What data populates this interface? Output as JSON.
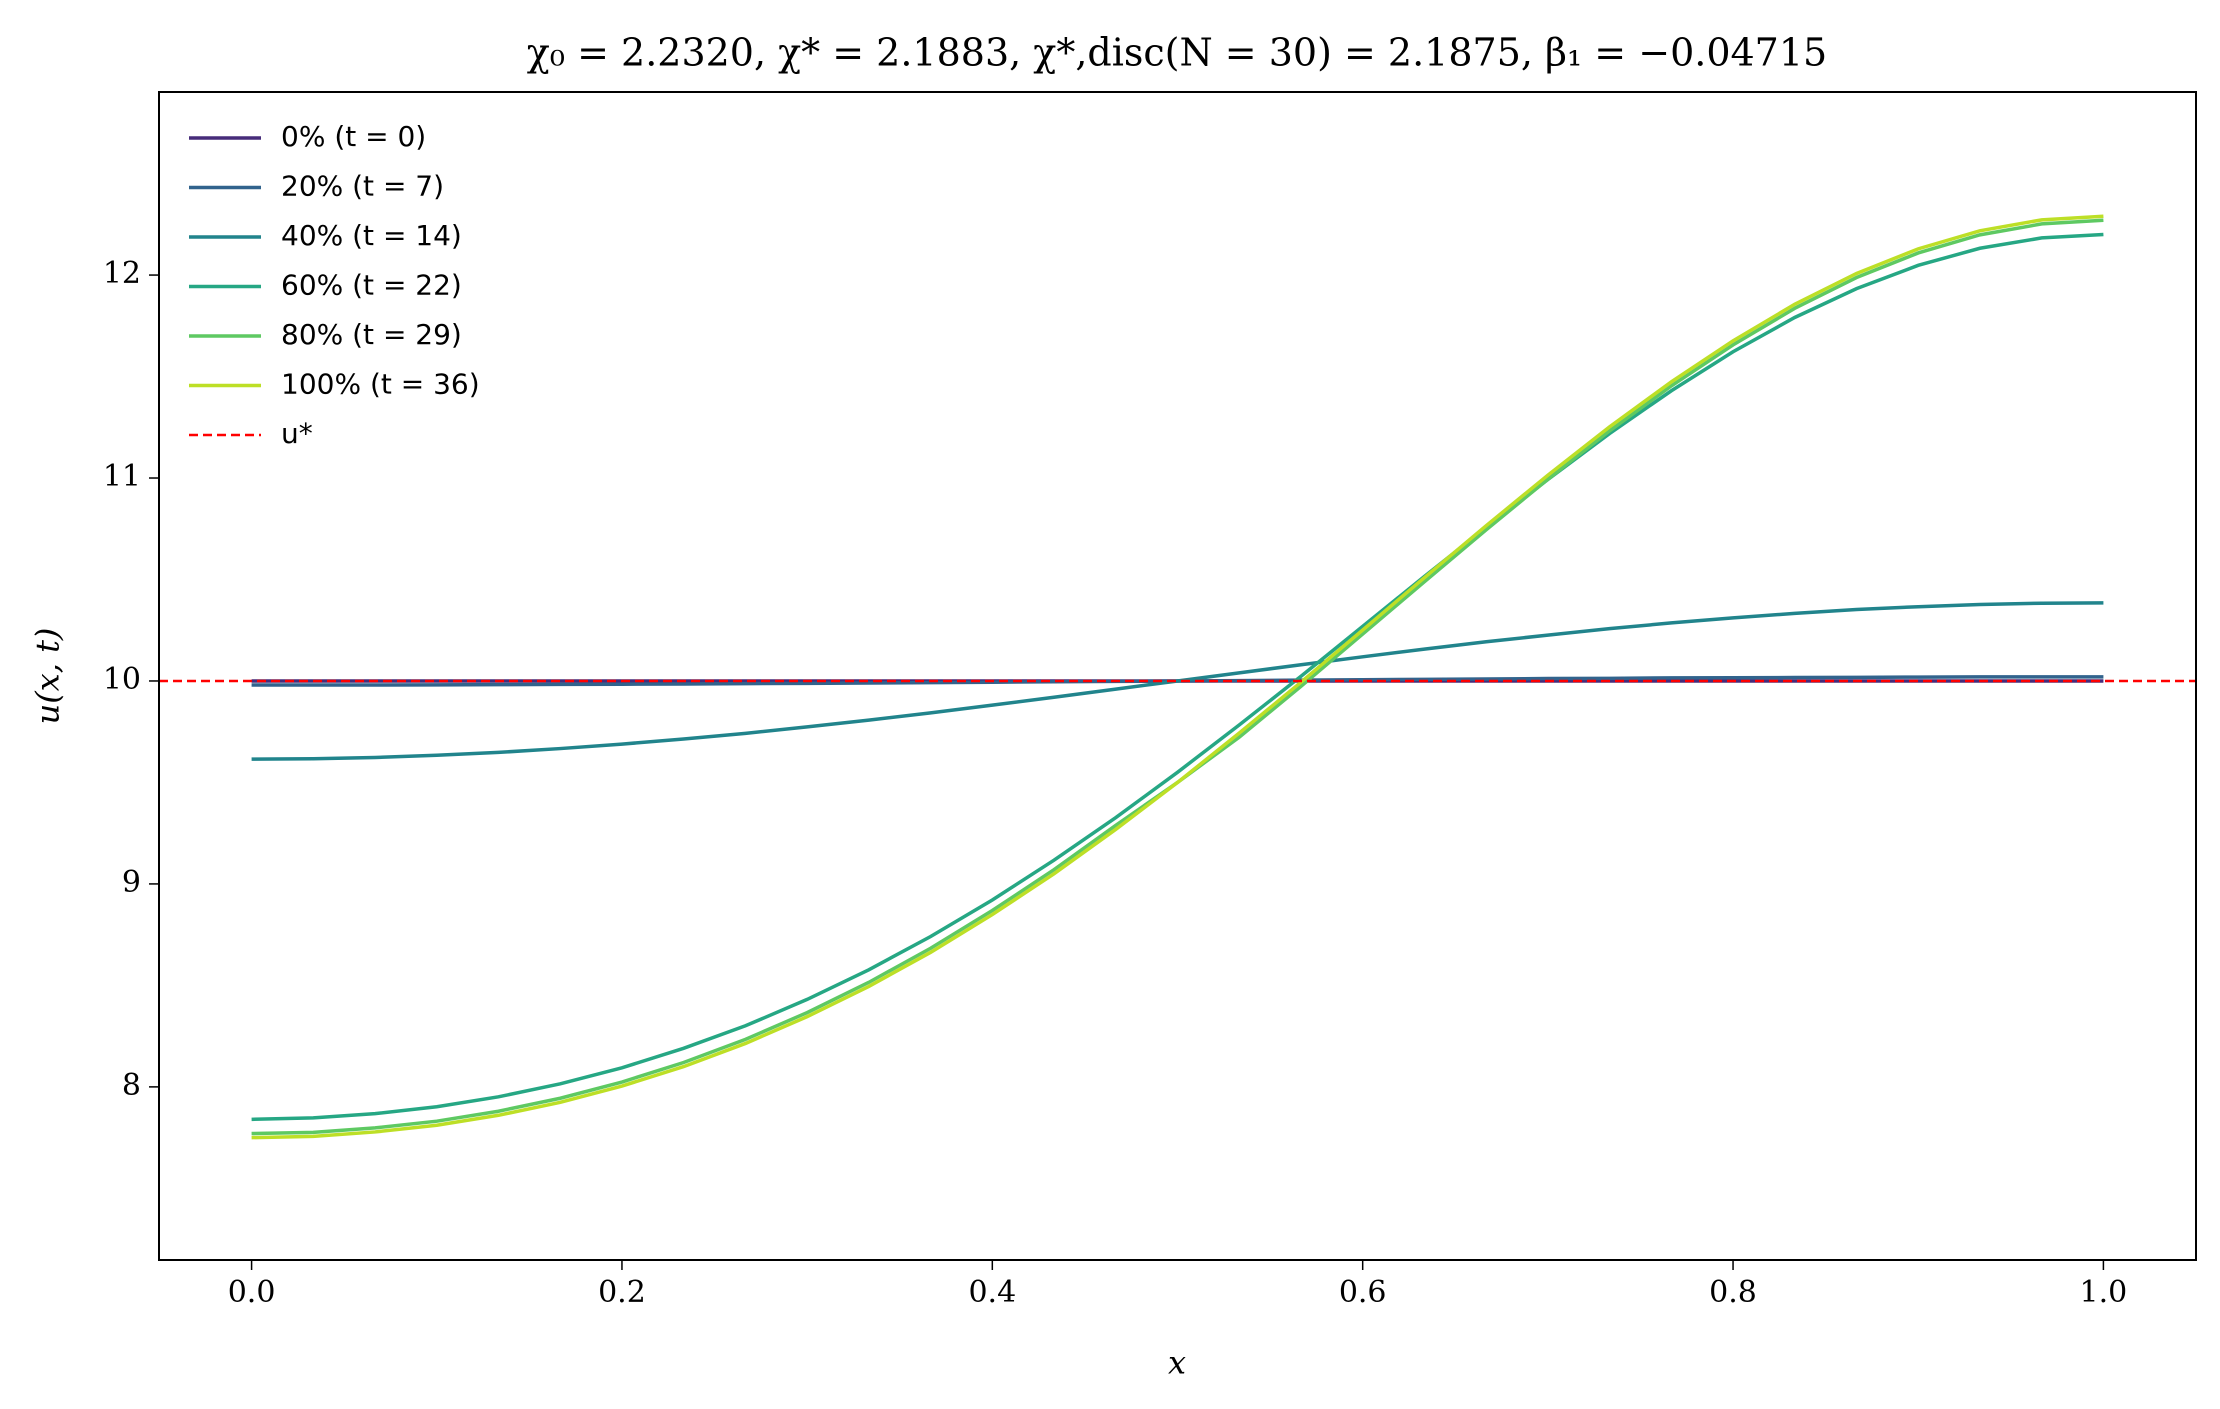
{
  "chart_data": {
    "type": "line",
    "title": "χ₀ = 2.2320,  χ* = 2.1883,  χ*,disc(N = 30) = 2.1875,  β₁ = −0.04715",
    "xlabel": "x",
    "ylabel": "u(x, t)",
    "xlim": [
      -0.05,
      1.05
    ],
    "ylim": [
      7.147,
      12.902
    ],
    "xticks": [
      {
        "value": 0,
        "label": "0.0"
      },
      0.2,
      0.4,
      0.6,
      0.8,
      {
        "value": 1,
        "label": "1.0"
      }
    ],
    "yticks": [
      8,
      9,
      10,
      11,
      12
    ],
    "grid": false,
    "legend": "upper left",
    "x": [
      0,
      0.0333,
      0.0667,
      0.1,
      0.1333,
      0.1667,
      0.2,
      0.2333,
      0.2667,
      0.3,
      0.3333,
      0.3667,
      0.4,
      0.4333,
      0.4667,
      0.5,
      0.5333,
      0.5667,
      0.6,
      0.6333,
      0.6667,
      0.7,
      0.7333,
      0.7667,
      0.8,
      0.8333,
      0.8667,
      0.9,
      0.9333,
      0.9667,
      1
    ],
    "series": [
      {
        "name": "0% (t = 0)",
        "color": "#472c7a",
        "values": [
          10,
          10,
          10,
          10,
          10,
          10,
          10,
          10,
          10,
          10,
          10,
          10,
          10,
          10,
          10,
          10,
          10,
          10,
          10,
          10,
          10,
          10,
          10,
          10,
          10,
          10,
          10,
          10,
          10,
          10,
          10
        ]
      },
      {
        "name": "20% (t = 7)",
        "color": "#31638d",
        "values": [
          9.98,
          9.98,
          9.98,
          9.981,
          9.982,
          9.983,
          9.984,
          9.985,
          9.987,
          9.988,
          9.99,
          9.992,
          9.994,
          9.996,
          9.998,
          10,
          10.002,
          10.004,
          10.006,
          10.008,
          10.01,
          10.012,
          10.013,
          10.015,
          10.016,
          10.017,
          10.018,
          10.019,
          10.02,
          10.02,
          10.02
        ]
      },
      {
        "name": "40% (t = 14)",
        "color": "#21848c",
        "values": [
          9.615,
          9.617,
          9.623,
          9.634,
          9.648,
          9.667,
          9.689,
          9.714,
          9.742,
          9.774,
          9.807,
          9.843,
          9.881,
          9.92,
          9.96,
          10,
          10.04,
          10.08,
          10.119,
          10.157,
          10.193,
          10.226,
          10.258,
          10.286,
          10.311,
          10.333,
          10.352,
          10.366,
          10.377,
          10.383,
          10.385
        ]
      },
      {
        "name": "60% (t = 22)",
        "color": "#26a784",
        "values": [
          7.84,
          7.847,
          7.868,
          7.902,
          7.951,
          8.015,
          8.094,
          8.19,
          8.301,
          8.431,
          8.577,
          8.741,
          8.921,
          9.117,
          9.327,
          9.55,
          9.783,
          10.023,
          10.269,
          10.515,
          10.757,
          10.993,
          11.219,
          11.43,
          11.622,
          11.791,
          11.933,
          12.048,
          12.132,
          12.183,
          12.2
        ]
      },
      {
        "name": "80% (t = 29)",
        "color": "#5ec962",
        "values": [
          7.77,
          7.776,
          7.798,
          7.831,
          7.88,
          7.944,
          8.024,
          8.12,
          8.234,
          8.366,
          8.515,
          8.683,
          8.869,
          9.07,
          9.289,
          9.5,
          9.723,
          9.974,
          10.231,
          10.489,
          10.745,
          10.994,
          11.232,
          11.454,
          11.656,
          11.836,
          11.988,
          12.109,
          12.198,
          12.252,
          12.27
        ]
      },
      {
        "name": "100% (t = 36)",
        "color": "#bddf26",
        "values": [
          7.75,
          7.756,
          7.778,
          7.811,
          7.86,
          7.924,
          8.004,
          8.1,
          8.214,
          8.346,
          8.495,
          8.663,
          8.849,
          9.05,
          9.269,
          9.5,
          9.743,
          9.994,
          10.251,
          10.509,
          10.765,
          11.014,
          11.252,
          11.474,
          11.676,
          11.856,
          12.008,
          12.129,
          12.218,
          12.272,
          12.29
        ]
      }
    ],
    "reference": {
      "name": "u*",
      "value": 10,
      "color": "#ff0000"
    }
  }
}
